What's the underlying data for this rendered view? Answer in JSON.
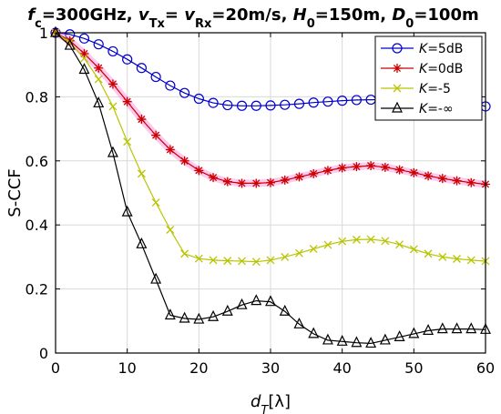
{
  "chart_data": {
    "type": "line",
    "title": {
      "parts": [
        {
          "t": "f",
          "i": true
        },
        {
          "t": "c",
          "sub": true
        },
        {
          "t": "=300GHz,  "
        },
        {
          "t": "v",
          "i": true
        },
        {
          "t": "Tx",
          "sub": true
        },
        {
          "t": "= "
        },
        {
          "t": "v",
          "i": true
        },
        {
          "t": "Rx",
          "sub": true
        },
        {
          "t": "=20m/s,  "
        },
        {
          "t": "H",
          "i": true
        },
        {
          "t": "0",
          "sub": true
        },
        {
          "t": "=150m,  "
        },
        {
          "t": "D",
          "i": true
        },
        {
          "t": "0",
          "sub": true
        },
        {
          "t": "=100m"
        }
      ]
    },
    "xlabel": {
      "parts": [
        {
          "t": "d",
          "i": true
        },
        {
          "t": "T",
          "sub": true,
          "i": true
        },
        {
          "t": "[λ]"
        }
      ]
    },
    "ylabel": "S-CCF",
    "xlim": [
      0,
      60
    ],
    "ylim": [
      0,
      1
    ],
    "xticks": [
      0,
      10,
      20,
      30,
      40,
      50,
      60
    ],
    "yticks": [
      0,
      0.2,
      0.4,
      0.6,
      0.8,
      1
    ],
    "ytick_labels": [
      "0",
      "0.2",
      "0.4",
      "0.6",
      "0.8",
      "1"
    ],
    "grid": true,
    "legend_position": "top-right",
    "x": [
      0,
      2,
      4,
      6,
      8,
      10,
      12,
      14,
      16,
      18,
      20,
      22,
      24,
      26,
      28,
      30,
      32,
      34,
      36,
      38,
      40,
      42,
      44,
      46,
      48,
      50,
      52,
      54,
      56,
      58,
      60
    ],
    "series": [
      {
        "name": {
          "parts": [
            {
              "t": "K",
              "i": true
            },
            {
              "t": "=5dB"
            }
          ]
        },
        "color": "#0000cc",
        "marker": "circle",
        "values": [
          1.0,
          0.995,
          0.982,
          0.964,
          0.942,
          0.917,
          0.89,
          0.862,
          0.835,
          0.812,
          0.794,
          0.781,
          0.774,
          0.772,
          0.772,
          0.773,
          0.775,
          0.778,
          0.782,
          0.785,
          0.788,
          0.79,
          0.791,
          0.791,
          0.79,
          0.789,
          0.787,
          0.786,
          0.785,
          0.785,
          0.77
        ]
      },
      {
        "name": {
          "parts": [
            {
              "t": "K",
              "i": true
            },
            {
              "t": "=0dB"
            }
          ]
        },
        "color": "#cc0000",
        "glow": "#ff88dd",
        "marker": "star",
        "values": [
          1.0,
          0.975,
          0.935,
          0.89,
          0.84,
          0.785,
          0.73,
          0.68,
          0.635,
          0.6,
          0.57,
          0.548,
          0.535,
          0.53,
          0.53,
          0.532,
          0.54,
          0.55,
          0.56,
          0.57,
          0.578,
          0.582,
          0.585,
          0.58,
          0.572,
          0.563,
          0.553,
          0.545,
          0.538,
          0.532,
          0.527
        ]
      },
      {
        "name": {
          "parts": [
            {
              "t": "K",
              "i": true
            },
            {
              "t": "=-5"
            }
          ]
        },
        "color": "#b8c400",
        "marker": "x",
        "values": [
          1.0,
          0.97,
          0.92,
          0.855,
          0.77,
          0.66,
          0.56,
          0.47,
          0.385,
          0.31,
          0.295,
          0.29,
          0.288,
          0.287,
          0.285,
          0.29,
          0.3,
          0.312,
          0.325,
          0.338,
          0.349,
          0.354,
          0.355,
          0.35,
          0.339,
          0.324,
          0.31,
          0.3,
          0.294,
          0.29,
          0.287
        ]
      },
      {
        "name": {
          "parts": [
            {
              "t": "K",
              "i": true
            },
            {
              "t": "=-∞"
            }
          ]
        },
        "color": "#000000",
        "marker": "triangle",
        "values": [
          1.0,
          0.96,
          0.885,
          0.78,
          0.625,
          0.44,
          0.34,
          0.23,
          0.118,
          0.108,
          0.105,
          0.113,
          0.13,
          0.15,
          0.163,
          0.16,
          0.13,
          0.09,
          0.06,
          0.04,
          0.036,
          0.032,
          0.03,
          0.04,
          0.05,
          0.06,
          0.07,
          0.075,
          0.075,
          0.075,
          0.073
        ]
      }
    ]
  }
}
